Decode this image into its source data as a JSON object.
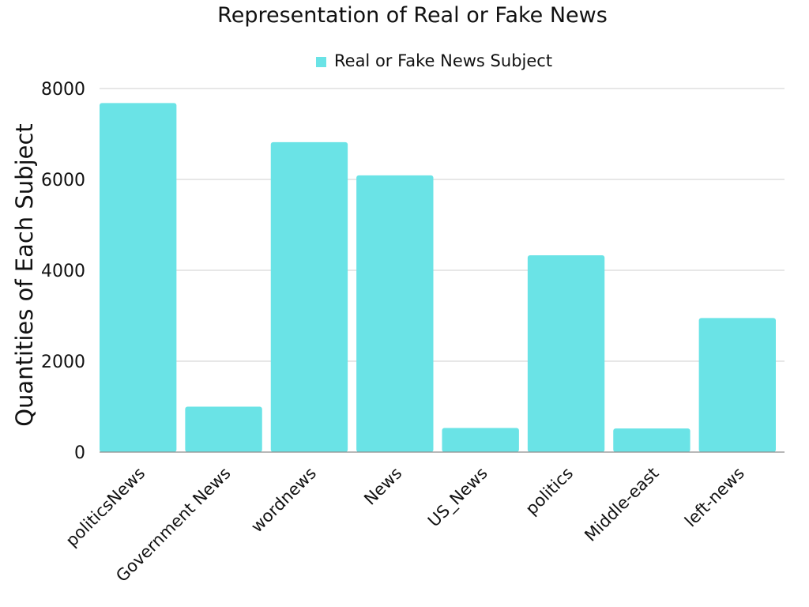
{
  "chart_data": {
    "type": "bar",
    "title": "Representation of Real or Fake News",
    "xlabel": "",
    "ylabel": "Quantities of Each Subject",
    "categories": [
      "politicsNews",
      "Government News",
      "wordnews",
      "News",
      "US_News",
      "politics",
      "Middle-east",
      "left-news"
    ],
    "series": [
      {
        "name": "Real or Fake News Subject",
        "values": [
          7680,
          1000,
          6820,
          6090,
          530,
          4330,
          520,
          2950
        ],
        "color": "#6ae3e6"
      }
    ],
    "yticks": [
      "0",
      "2000",
      "4000",
      "6000",
      "8000"
    ],
    "ylim": [
      0,
      8000
    ],
    "grid": true,
    "legend_position": "top-center"
  }
}
